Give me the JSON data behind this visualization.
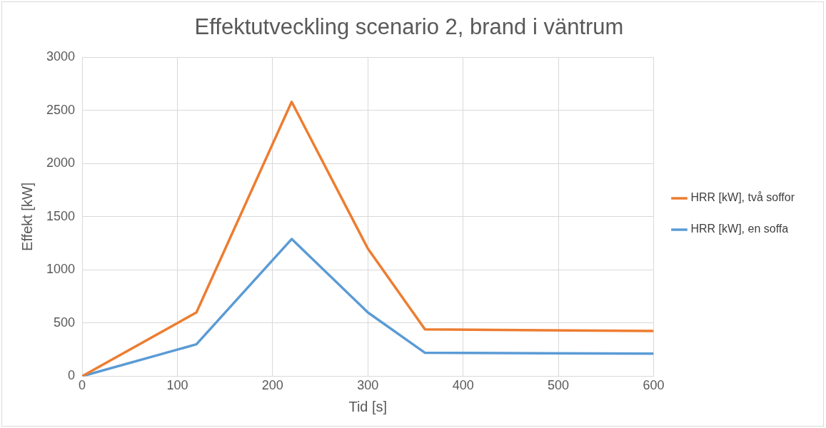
{
  "chart_data": {
    "type": "line",
    "title": "Effektutveckling scenario 2, brand i väntrum",
    "xlabel": "Tid [s]",
    "ylabel": "Effekt [kW]",
    "series": [
      {
        "name": "HRR [kW], två soffor",
        "color": "#ed7d31",
        "x": [
          0,
          120,
          220,
          300,
          360,
          600
        ],
        "values": [
          0,
          600,
          2580,
          1200,
          440,
          425
        ]
      },
      {
        "name": "HRR [kW], en soffa",
        "color": "#5b9bd5",
        "x": [
          0,
          120,
          220,
          300,
          360,
          600
        ],
        "values": [
          0,
          300,
          1290,
          600,
          220,
          212
        ]
      }
    ],
    "xlim": [
      0,
      600
    ],
    "xticks": [
      0,
      100,
      200,
      300,
      400,
      500,
      600
    ],
    "ylim": [
      0,
      3000
    ],
    "yticks": [
      0,
      500,
      1000,
      1500,
      2000,
      2500,
      3000
    ],
    "grid": true,
    "legend": "right",
    "marker": "none",
    "line_style": "solid"
  }
}
